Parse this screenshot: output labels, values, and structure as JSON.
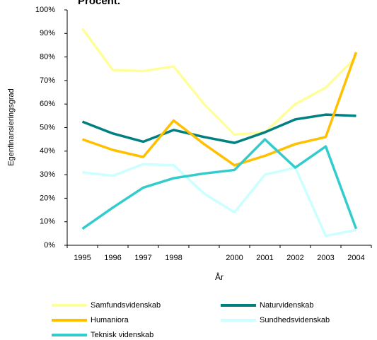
{
  "chart_data": {
    "type": "line",
    "title": "Procent.",
    "x_label": "År",
    "y_label": "Egenfinansieringsgrad",
    "categories": [
      "1995",
      "1996",
      "1997",
      "1998",
      null,
      "2000",
      "2001",
      "2002",
      "2003",
      "2004"
    ],
    "ylim": [
      0,
      100
    ],
    "yticks": [
      {
        "value": 0,
        "label": "0%"
      },
      {
        "value": 10,
        "label": "10%"
      },
      {
        "value": 20,
        "label": "20%"
      },
      {
        "value": 30,
        "label": "30%"
      },
      {
        "value": 40,
        "label": "40%"
      },
      {
        "value": 50,
        "label": "50%"
      },
      {
        "value": 60,
        "label": "60%"
      },
      {
        "value": 70,
        "label": "70%"
      },
      {
        "value": 80,
        "label": "80%"
      },
      {
        "value": 90,
        "label": "90%"
      },
      {
        "value": 100,
        "label": "100%"
      }
    ],
    "series": [
      {
        "name": "Samfundsvidenskab",
        "color": "#ffff99",
        "values": [
          92,
          74.5,
          74,
          76,
          60,
          47,
          48,
          60,
          67,
          80
        ]
      },
      {
        "name": "Naturvidenskab",
        "color": "#008080",
        "values": [
          52.5,
          47.5,
          44,
          49,
          46,
          43.5,
          48,
          53.5,
          55.5,
          55
        ]
      },
      {
        "name": "Humaniora",
        "color": "#ffc000",
        "values": [
          45,
          40.5,
          37.5,
          53,
          43,
          34,
          38,
          43,
          46,
          82
        ]
      },
      {
        "name": "Sundhedsvidenskab",
        "color": "#ccffff",
        "values": [
          31,
          29.5,
          34.5,
          34,
          22,
          14,
          30,
          33,
          4,
          6.5
        ]
      },
      {
        "name": "Teknisk videnskab",
        "color": "#33cccc",
        "values": [
          7,
          16,
          24.5,
          28.5,
          30.5,
          32,
          45,
          33,
          42,
          7
        ]
      }
    ]
  }
}
